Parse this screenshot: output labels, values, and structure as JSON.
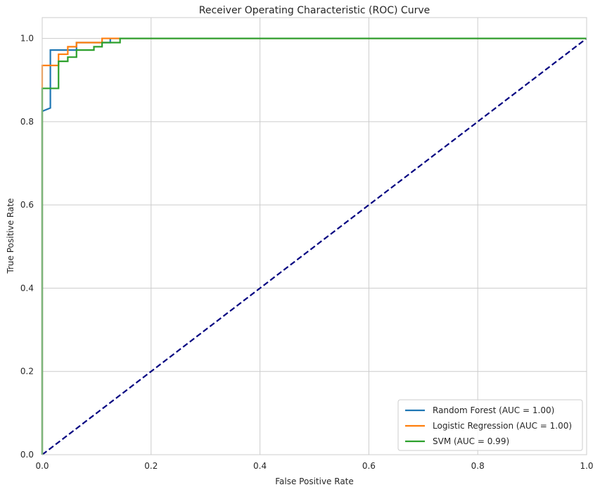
{
  "chart_data": {
    "type": "line",
    "title": "Receiver Operating Characteristic (ROC) Curve",
    "xlabel": "False Positive Rate",
    "ylabel": "True Positive Rate",
    "xlim": [
      0.0,
      1.0
    ],
    "ylim": [
      0.0,
      1.05
    ],
    "xticks": [
      "0.0",
      "0.2",
      "0.4",
      "0.6",
      "0.8",
      "1.0"
    ],
    "yticks": [
      "0.0",
      "0.2",
      "0.4",
      "0.6",
      "0.8",
      "1.0"
    ],
    "grid": true,
    "legend_position": "lower-right",
    "series": [
      {
        "name": "Random Forest (AUC = 1.00)",
        "color": "#1f77b4",
        "points": [
          [
            0,
            0
          ],
          [
            0,
            0.825
          ],
          [
            0.015,
            0.833
          ],
          [
            0.015,
            0.972
          ],
          [
            0.063,
            0.972
          ],
          [
            0.063,
            0.99
          ],
          [
            0.125,
            0.99
          ],
          [
            0.125,
            1.0
          ],
          [
            1.0,
            1.0
          ]
        ]
      },
      {
        "name": "Logistic Regression (AUC = 1.00)",
        "color": "#ff7f0e",
        "points": [
          [
            0,
            0
          ],
          [
            0,
            0.88
          ],
          [
            0,
            0.935
          ],
          [
            0.03,
            0.935
          ],
          [
            0.03,
            0.962
          ],
          [
            0.047,
            0.962
          ],
          [
            0.047,
            0.98
          ],
          [
            0.063,
            0.98
          ],
          [
            0.063,
            0.99
          ],
          [
            0.11,
            0.99
          ],
          [
            0.11,
            1.0
          ],
          [
            1.0,
            1.0
          ]
        ]
      },
      {
        "name": "SVM (AUC = 0.99)",
        "color": "#2ca02c",
        "points": [
          [
            0,
            0
          ],
          [
            0,
            0.88
          ],
          [
            0.03,
            0.88
          ],
          [
            0.03,
            0.945
          ],
          [
            0.047,
            0.945
          ],
          [
            0.047,
            0.955
          ],
          [
            0.063,
            0.955
          ],
          [
            0.063,
            0.972
          ],
          [
            0.095,
            0.972
          ],
          [
            0.095,
            0.98
          ],
          [
            0.11,
            0.98
          ],
          [
            0.11,
            0.99
          ],
          [
            0.143,
            0.99
          ],
          [
            0.143,
            1.0
          ],
          [
            1.0,
            1.0
          ]
        ]
      }
    ],
    "reference_line": {
      "points": [
        [
          0,
          0
        ],
        [
          1,
          1
        ]
      ],
      "color": "#000080",
      "style": "dashed"
    }
  }
}
